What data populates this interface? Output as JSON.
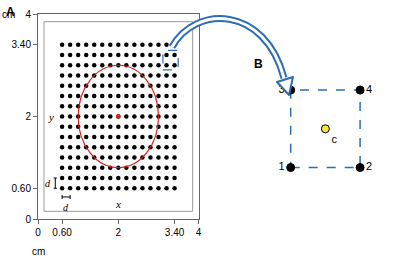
{
  "chart_data": [
    {
      "type": "scatter",
      "title": "A",
      "x": [
        0.6,
        0.8,
        1,
        1.2,
        1.4,
        1.6,
        1.8,
        2,
        2.2,
        2.4,
        2.6,
        2.8,
        3,
        3.2,
        3.4,
        0.6,
        0.8,
        1,
        1.2,
        1.4,
        1.6,
        1.8,
        2,
        2.2,
        2.4,
        2.6,
        2.8,
        3,
        3.2,
        3.4,
        0.6,
        0.8,
        1,
        1.2,
        1.4,
        1.6,
        1.8,
        2,
        2.2,
        2.4,
        2.6,
        2.8,
        3,
        3.2,
        3.4,
        0.6,
        0.8,
        1,
        1.2,
        1.4,
        1.6,
        1.8,
        2,
        2.2,
        2.4,
        2.6,
        2.8,
        3,
        3.2,
        3.4,
        0.6,
        0.8,
        1,
        1.2,
        1.4,
        1.6,
        1.8,
        2,
        2.2,
        2.4,
        2.6,
        2.8,
        3,
        3.2,
        3.4,
        0.6,
        0.8,
        1,
        1.2,
        1.4,
        1.6,
        1.8,
        2,
        2.2,
        2.4,
        2.6,
        2.8,
        3,
        3.2,
        3.4,
        0.6,
        0.8,
        1,
        1.2,
        1.4,
        1.6,
        1.8,
        2,
        2.2,
        2.4,
        2.6,
        2.8,
        3,
        3.2,
        3.4,
        0.6,
        0.8,
        1,
        1.2,
        1.4,
        1.6,
        1.8,
        2,
        2.2,
        2.4,
        2.6,
        2.8,
        3,
        3.2,
        3.4,
        0.6,
        0.8,
        1,
        1.2,
        1.4,
        1.6,
        1.8,
        2,
        2.2,
        2.4,
        2.6,
        2.8,
        3,
        3.2,
        3.4,
        0.6,
        0.8,
        1,
        1.2,
        1.4,
        1.6,
        1.8,
        2,
        2.2,
        2.4,
        2.6,
        2.8,
        3,
        3.2,
        3.4,
        0.6,
        0.8,
        1,
        1.2,
        1.4,
        1.6,
        1.8,
        2,
        2.2,
        2.4,
        2.6,
        2.8,
        3,
        3.2,
        3.4,
        0.6,
        0.8,
        1,
        1.2,
        1.4,
        1.6,
        1.8,
        2,
        2.2,
        2.4,
        2.6,
        2.8,
        3,
        3.2,
        3.4,
        0.6,
        0.8,
        1,
        1.2,
        1.4,
        1.6,
        1.8,
        2,
        2.2,
        2.4,
        2.6,
        2.8,
        3,
        3.2,
        3.4,
        0.6,
        0.8,
        1,
        1.2,
        1.4,
        1.6,
        1.8,
        2,
        2.2,
        2.4,
        2.6,
        2.8,
        3,
        3.2,
        3.4,
        0.6,
        0.8,
        1,
        1.2,
        1.4,
        1.6,
        1.8,
        2,
        2.2,
        2.4,
        2.6,
        2.8,
        3,
        3.2,
        3.4
      ],
      "y": [
        0.6,
        0.6,
        0.6,
        0.6,
        0.6,
        0.6,
        0.6,
        0.6,
        0.6,
        0.6,
        0.6,
        0.6,
        0.6,
        0.6,
        0.6,
        0.8,
        0.8,
        0.8,
        0.8,
        0.8,
        0.8,
        0.8,
        0.8,
        0.8,
        0.8,
        0.8,
        0.8,
        0.8,
        0.8,
        0.8,
        1,
        1,
        1,
        1,
        1,
        1,
        1,
        1,
        1,
        1,
        1,
        1,
        1,
        1,
        1,
        1.2,
        1.2,
        1.2,
        1.2,
        1.2,
        1.2,
        1.2,
        1.2,
        1.2,
        1.2,
        1.2,
        1.2,
        1.2,
        1.2,
        1.2,
        1.4,
        1.4,
        1.4,
        1.4,
        1.4,
        1.4,
        1.4,
        1.4,
        1.4,
        1.4,
        1.4,
        1.4,
        1.4,
        1.4,
        1.4,
        1.6,
        1.6,
        1.6,
        1.6,
        1.6,
        1.6,
        1.6,
        1.6,
        1.6,
        1.6,
        1.6,
        1.6,
        1.6,
        1.6,
        1.6,
        1.8,
        1.8,
        1.8,
        1.8,
        1.8,
        1.8,
        1.8,
        1.8,
        1.8,
        1.8,
        1.8,
        1.8,
        1.8,
        1.8,
        1.8,
        2,
        2,
        2,
        2,
        2,
        2,
        2,
        2,
        2,
        2,
        2,
        2,
        2,
        2,
        2,
        2.2,
        2.2,
        2.2,
        2.2,
        2.2,
        2.2,
        2.2,
        2.2,
        2.2,
        2.2,
        2.2,
        2.2,
        2.2,
        2.2,
        2.2,
        2.4,
        2.4,
        2.4,
        2.4,
        2.4,
        2.4,
        2.4,
        2.4,
        2.4,
        2.4,
        2.4,
        2.4,
        2.4,
        2.4,
        2.4,
        2.6,
        2.6,
        2.6,
        2.6,
        2.6,
        2.6,
        2.6,
        2.6,
        2.6,
        2.6,
        2.6,
        2.6,
        2.6,
        2.6,
        2.6,
        2.8,
        2.8,
        2.8,
        2.8,
        2.8,
        2.8,
        2.8,
        2.8,
        2.8,
        2.8,
        2.8,
        2.8,
        2.8,
        2.8,
        2.8,
        3,
        3,
        3,
        3,
        3,
        3,
        3,
        3,
        3,
        3,
        3,
        3,
        3,
        3,
        3,
        3.2,
        3.2,
        3.2,
        3.2,
        3.2,
        3.2,
        3.2,
        3.2,
        3.2,
        3.2,
        3.2,
        3.2,
        3.2,
        3.2,
        3.2,
        3.4,
        3.4,
        3.4,
        3.4,
        3.4,
        3.4,
        3.4,
        3.4,
        3.4,
        3.4,
        3.4,
        3.4,
        3.4,
        3.4,
        3.4
      ],
      "color": "#000000",
      "marker": "circle",
      "xlim": [
        0,
        4
      ],
      "ylim": [
        0,
        4
      ],
      "xticks": [
        0,
        {
          "value": 0.6,
          "label": "0.60"
        },
        2,
        {
          "value": 3.4,
          "label": "3.40"
        },
        4
      ],
      "yticks": [
        0,
        {
          "value": 0.6,
          "label": "0.60"
        },
        2,
        {
          "value": 3.4,
          "label": "3.40"
        },
        4
      ],
      "x_label": "cm",
      "y_label": "cm",
      "grid": false,
      "frame": {
        "x": [
          0.15,
          3.85
        ],
        "y": [
          0.15,
          3.85
        ]
      },
      "circle": {
        "center": [
          2,
          2
        ],
        "radius": 1.0,
        "color": "#e0201b"
      },
      "highlight": {
        "x": [
          3.2,
          3.4
        ],
        "y": [
          3.0,
          3.2
        ],
        "color": "#2d6db5",
        "line_style": "dashed"
      },
      "spacing": {
        "label": "d",
        "from": 0.6,
        "to": 0.8
      },
      "annotations": [
        {
          "text": "x",
          "x": 2,
          "y": 0.3
        },
        {
          "text": "y",
          "x": 0.32,
          "y": 2
        }
      ]
    },
    {
      "type": "scatter",
      "title": "B",
      "x": [
        0,
        1,
        0,
        1,
        0.5
      ],
      "y": [
        0,
        0,
        1,
        1,
        0.5
      ],
      "labels": [
        "1",
        "2",
        "3",
        "4",
        "c"
      ],
      "colors": [
        "#000000",
        "#000000",
        "#000000",
        "#000000",
        "#f5e83a"
      ],
      "xlim": [
        -0.4,
        1.4
      ],
      "ylim": [
        -0.4,
        1.4
      ],
      "tick_labels": false,
      "grid": false,
      "highlight": {
        "color": "#2d6db5",
        "line_style": "dashed"
      }
    }
  ]
}
